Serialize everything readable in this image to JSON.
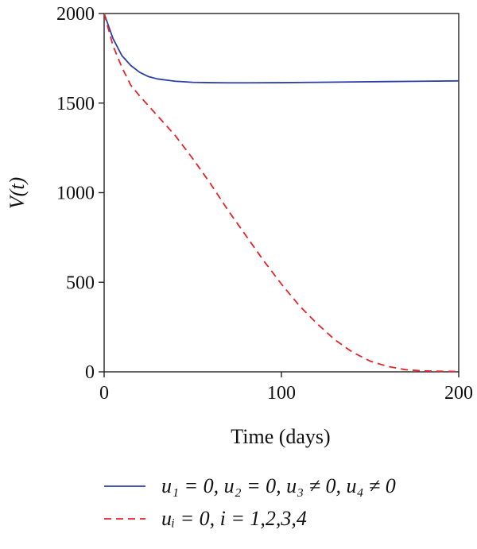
{
  "chart_data": {
    "type": "line",
    "title": "",
    "xlabel": "Time (days)",
    "ylabel": "V(t)",
    "xlim": [
      0,
      200
    ],
    "ylim": [
      0,
      2000
    ],
    "xticks": [
      0,
      100,
      200
    ],
    "yticks": [
      0,
      500,
      1000,
      1500,
      2000
    ],
    "grid": false,
    "legend_position": "bottom",
    "series": [
      {
        "name": "u1 = 0, u2 = 0, u3 ≠ 0, u4 ≠ 0",
        "legend_label": "u₁ = 0, u₂ = 0, u₃ ≠ 0, u₄ ≠ 0",
        "color": "#2b3fa8",
        "dash": "solid",
        "x": [
          0,
          5,
          10,
          15,
          20,
          25,
          30,
          40,
          50,
          60,
          70,
          80,
          100,
          120,
          140,
          160,
          180,
          200
        ],
        "y": [
          2000,
          1860,
          1765,
          1710,
          1672,
          1648,
          1635,
          1622,
          1616,
          1614,
          1613,
          1613,
          1614,
          1616,
          1618,
          1620,
          1622,
          1624
        ]
      },
      {
        "name": "ui = 0, i = 1,2,3,4",
        "legend_label": "uᵢ = 0, i = 1,2,3,4",
        "color": "#e8232a",
        "dash": "dashed",
        "x": [
          0,
          5,
          10,
          15,
          20,
          30,
          40,
          50,
          60,
          70,
          80,
          90,
          100,
          110,
          120,
          130,
          140,
          150,
          160,
          170,
          180,
          190,
          200
        ],
        "y": [
          2000,
          1820,
          1700,
          1600,
          1540,
          1430,
          1320,
          1190,
          1050,
          900,
          760,
          620,
          490,
          370,
          270,
          180,
          110,
          60,
          30,
          12,
          5,
          3,
          2
        ]
      }
    ]
  }
}
